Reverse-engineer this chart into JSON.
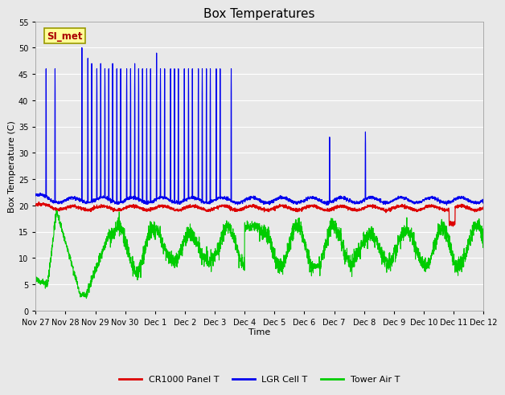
{
  "title": "Box Temperatures",
  "xlabel": "Time",
  "ylabel": "Box Temperature (C)",
  "ylim": [
    0,
    55
  ],
  "yticks": [
    0,
    5,
    10,
    15,
    20,
    25,
    30,
    35,
    40,
    45,
    50,
    55
  ],
  "xtick_labels": [
    "Nov 27",
    "Nov 28",
    "Nov 29",
    "Nov 30",
    "Dec 1",
    "Dec 2",
    "Dec 3",
    "Dec 4",
    "Dec 5",
    "Dec 6",
    "Dec 7",
    "Dec 8",
    "Dec 9",
    "Dec 10",
    "Dec 11",
    "Dec 12"
  ],
  "plot_bg_color": "#e8e8e8",
  "fig_bg_color": "#e8e8e8",
  "legend_bg_color": "#ffffff",
  "grid_color": "#ffffff",
  "legend_label1": "CR1000 Panel T",
  "legend_label2": "LGR Cell T",
  "legend_label3": "Tower Air T",
  "color_red": "#dd0000",
  "color_blue": "#0000ee",
  "color_green": "#00cc00",
  "annotation_text": "SI_met",
  "annotation_color": "#aa0000",
  "annotation_bg": "#ffff99",
  "annotation_border": "#999900",
  "title_fontsize": 11,
  "label_fontsize": 8,
  "tick_fontsize": 7,
  "legend_fontsize": 8
}
